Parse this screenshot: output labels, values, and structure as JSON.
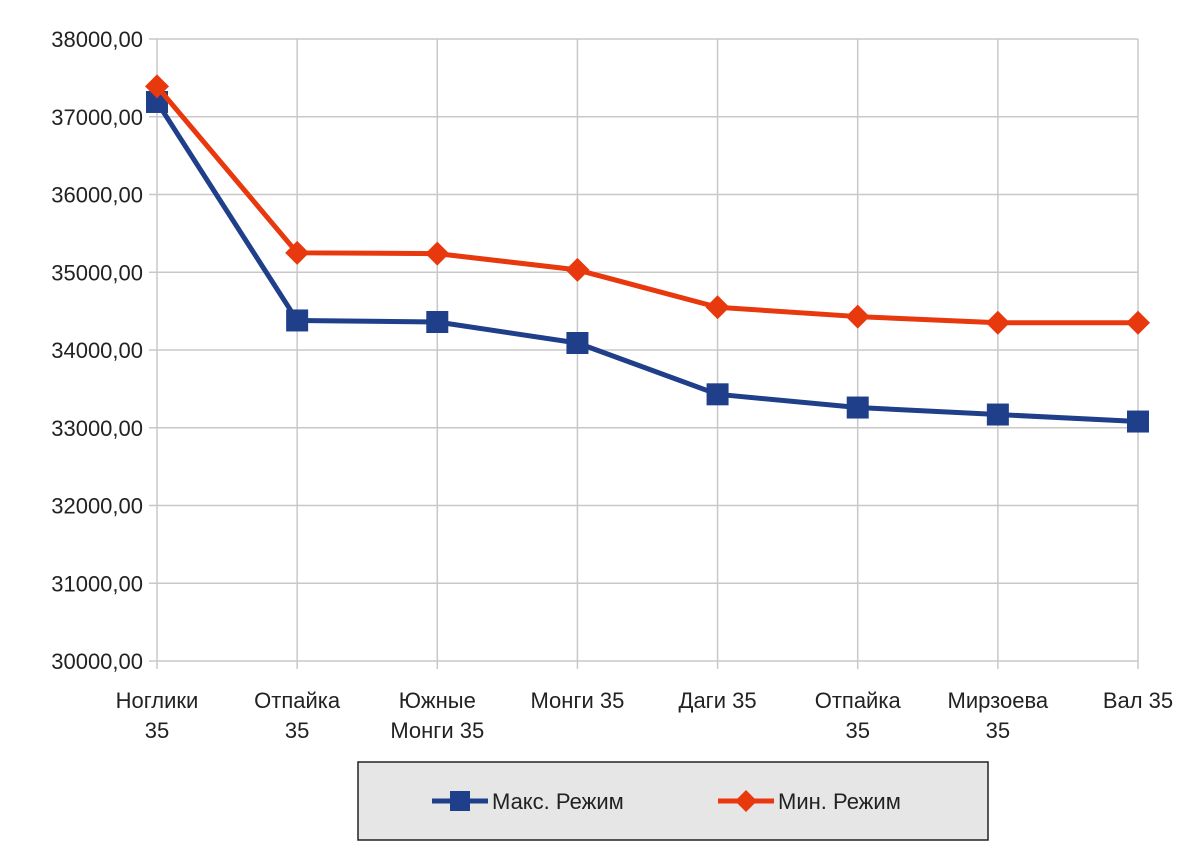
{
  "chart_data": {
    "type": "line",
    "title": "",
    "xlabel": "",
    "ylabel": "",
    "categories": [
      [
        "Ноглики",
        "35"
      ],
      [
        "Отпайка",
        "35"
      ],
      [
        "Южные",
        "Монги 35"
      ],
      [
        "Монги 35"
      ],
      [
        "Даги 35"
      ],
      [
        "Отпайка",
        "35"
      ],
      [
        "Мирзоева",
        "35"
      ],
      [
        "Вал 35"
      ]
    ],
    "ylim": [
      30000,
      38000
    ],
    "yticks": [
      "30000,00",
      "31000,00",
      "32000,00",
      "33000,00",
      "34000,00",
      "35000,00",
      "36000,00",
      "37000,00",
      "38000,00"
    ],
    "grid": true,
    "legend_position": "bottom",
    "series": [
      {
        "name": "Макс. Режим",
        "color": "#1f3f8a",
        "marker": "square",
        "values": [
          37190,
          34380,
          34360,
          34090,
          33430,
          33260,
          33170,
          33080
        ]
      },
      {
        "name": "Мин. Режим",
        "color": "#e8380d",
        "marker": "diamond",
        "values": [
          37390,
          35250,
          35240,
          35030,
          34550,
          34430,
          34350,
          34350
        ]
      }
    ]
  }
}
